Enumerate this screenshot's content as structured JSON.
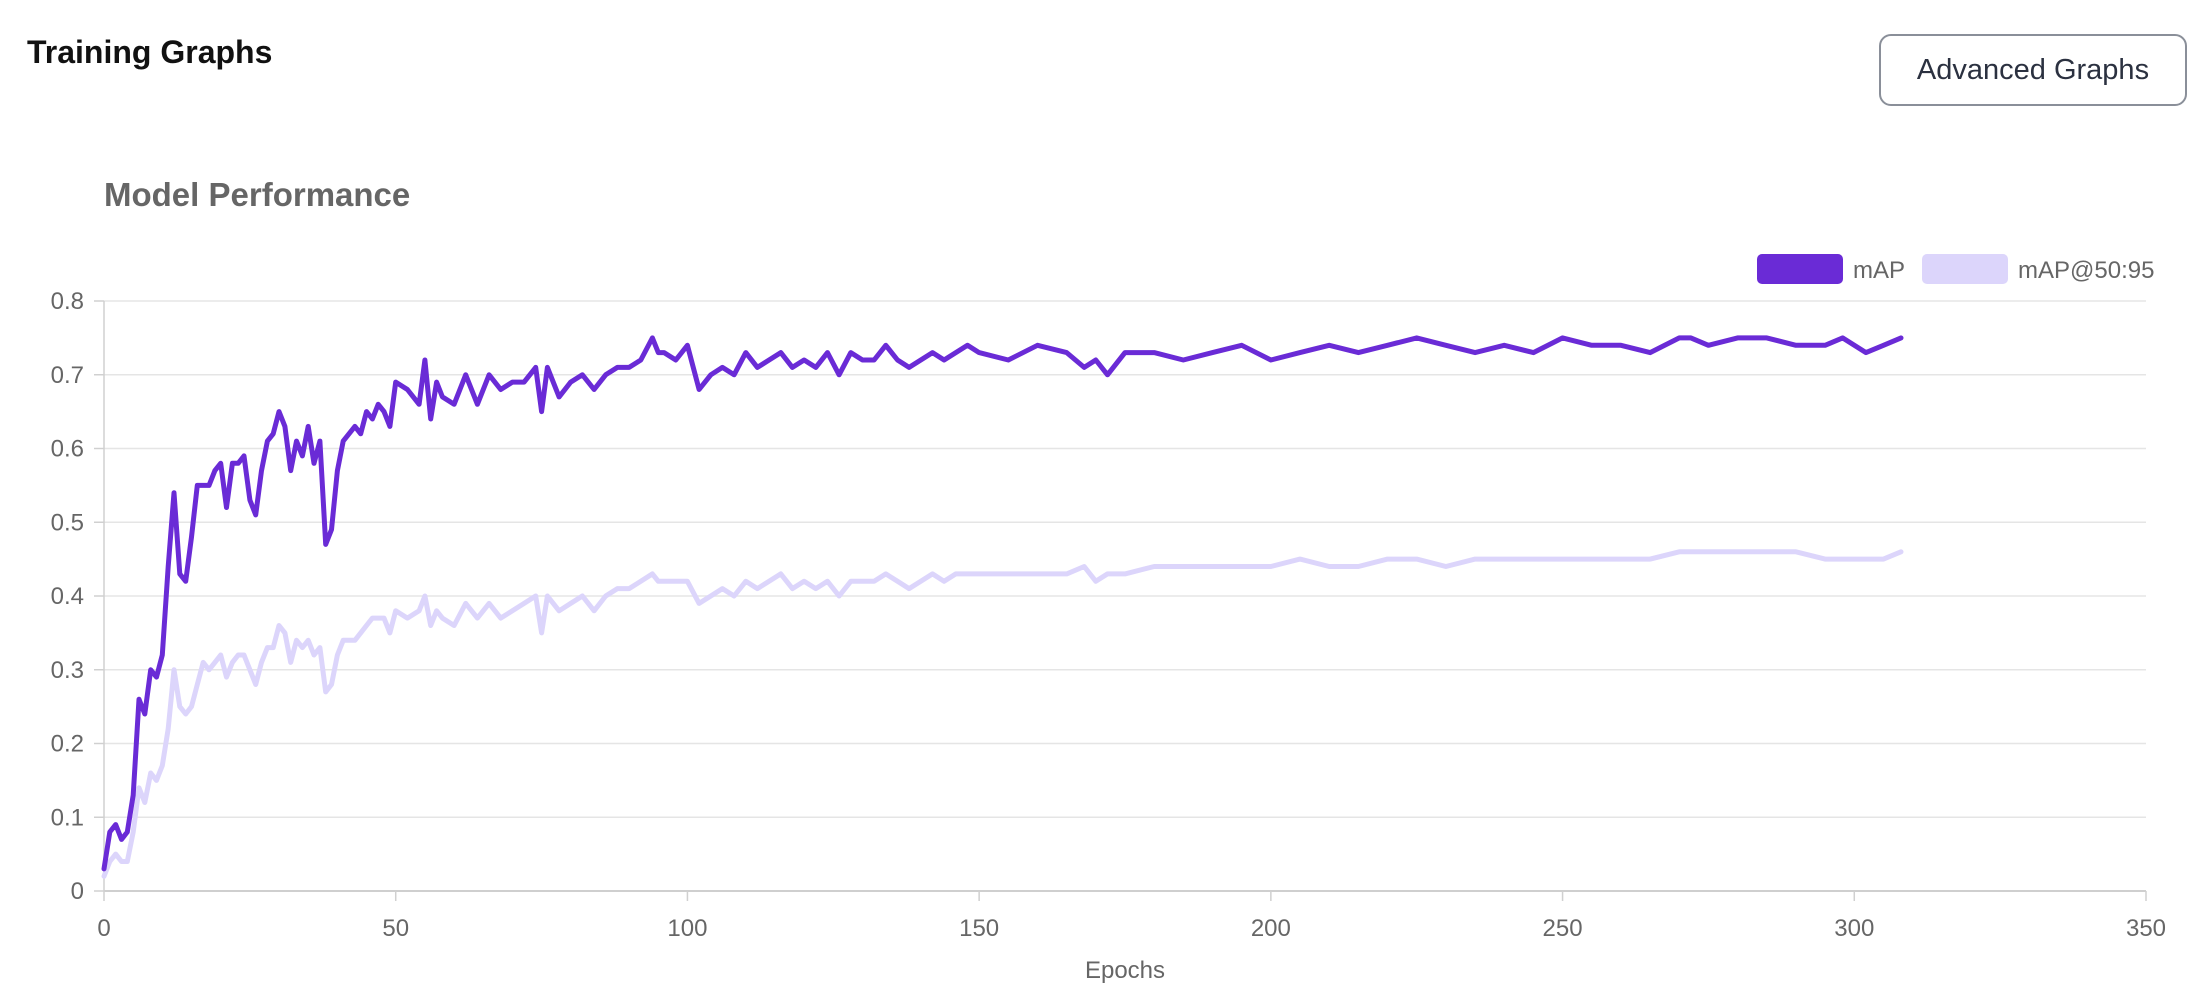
{
  "header": {
    "title": "Training Graphs",
    "advanced_button_label": "Advanced Graphs"
  },
  "chart_data": {
    "type": "line",
    "title": "Model Performance",
    "xlabel": "Epochs",
    "ylabel": "",
    "xlim": [
      0,
      350
    ],
    "ylim": [
      0,
      0.8
    ],
    "xticks": [
      0,
      50,
      100,
      150,
      200,
      250,
      300,
      350
    ],
    "yticks": [
      0,
      0.1,
      0.2,
      0.3,
      0.4,
      0.5,
      0.6,
      0.7,
      0.8
    ],
    "grid": true,
    "legend_position": "top-right",
    "series": [
      {
        "name": "mAP",
        "color": "#6a2bd6",
        "x": [
          0,
          1,
          2,
          3,
          4,
          5,
          6,
          7,
          8,
          9,
          10,
          11,
          12,
          13,
          14,
          15,
          16,
          17,
          18,
          19,
          20,
          21,
          22,
          23,
          24,
          25,
          26,
          27,
          28,
          29,
          30,
          31,
          32,
          33,
          34,
          35,
          36,
          37,
          38,
          39,
          40,
          41,
          42,
          43,
          44,
          45,
          46,
          47,
          48,
          49,
          50,
          52,
          54,
          55,
          56,
          57,
          58,
          60,
          62,
          64,
          66,
          68,
          70,
          72,
          74,
          75,
          76,
          78,
          80,
          82,
          84,
          86,
          88,
          90,
          92,
          94,
          95,
          96,
          98,
          100,
          102,
          104,
          106,
          108,
          110,
          112,
          114,
          116,
          118,
          120,
          122,
          124,
          126,
          128,
          130,
          132,
          134,
          136,
          138,
          140,
          142,
          144,
          146,
          148,
          150,
          155,
          160,
          165,
          168,
          170,
          172,
          175,
          180,
          185,
          190,
          195,
          200,
          205,
          210,
          215,
          220,
          225,
          230,
          235,
          240,
          245,
          250,
          255,
          260,
          265,
          270,
          272,
          275,
          280,
          285,
          290,
          295,
          298,
          300,
          302,
          305,
          308
        ],
        "values": [
          0.03,
          0.08,
          0.09,
          0.07,
          0.08,
          0.13,
          0.26,
          0.24,
          0.3,
          0.29,
          0.32,
          0.44,
          0.54,
          0.43,
          0.42,
          0.48,
          0.55,
          0.55,
          0.55,
          0.57,
          0.58,
          0.52,
          0.58,
          0.58,
          0.59,
          0.53,
          0.51,
          0.57,
          0.61,
          0.62,
          0.65,
          0.63,
          0.57,
          0.61,
          0.59,
          0.63,
          0.58,
          0.61,
          0.47,
          0.49,
          0.57,
          0.61,
          0.62,
          0.63,
          0.62,
          0.65,
          0.64,
          0.66,
          0.65,
          0.63,
          0.69,
          0.68,
          0.66,
          0.72,
          0.64,
          0.69,
          0.67,
          0.66,
          0.7,
          0.66,
          0.7,
          0.68,
          0.69,
          0.69,
          0.71,
          0.65,
          0.71,
          0.67,
          0.69,
          0.7,
          0.68,
          0.7,
          0.71,
          0.71,
          0.72,
          0.75,
          0.73,
          0.73,
          0.72,
          0.74,
          0.68,
          0.7,
          0.71,
          0.7,
          0.73,
          0.71,
          0.72,
          0.73,
          0.71,
          0.72,
          0.71,
          0.73,
          0.7,
          0.73,
          0.72,
          0.72,
          0.74,
          0.72,
          0.71,
          0.72,
          0.73,
          0.72,
          0.73,
          0.74,
          0.73,
          0.72,
          0.74,
          0.73,
          0.71,
          0.72,
          0.7,
          0.73,
          0.73,
          0.72,
          0.73,
          0.74,
          0.72,
          0.73,
          0.74,
          0.73,
          0.74,
          0.75,
          0.74,
          0.73,
          0.74,
          0.73,
          0.75,
          0.74,
          0.74,
          0.73,
          0.75,
          0.75,
          0.74,
          0.75,
          0.75,
          0.74,
          0.74,
          0.75,
          0.74,
          0.73,
          0.74,
          0.75
        ]
      },
      {
        "name": "mAP@50:95",
        "color": "#dcd5fb",
        "x": [
          0,
          1,
          2,
          3,
          4,
          5,
          6,
          7,
          8,
          9,
          10,
          11,
          12,
          13,
          14,
          15,
          16,
          17,
          18,
          19,
          20,
          21,
          22,
          23,
          24,
          25,
          26,
          27,
          28,
          29,
          30,
          31,
          32,
          33,
          34,
          35,
          36,
          37,
          38,
          39,
          40,
          41,
          42,
          43,
          44,
          45,
          46,
          47,
          48,
          49,
          50,
          52,
          54,
          55,
          56,
          57,
          58,
          60,
          62,
          64,
          66,
          68,
          70,
          72,
          74,
          75,
          76,
          78,
          80,
          82,
          84,
          86,
          88,
          90,
          92,
          94,
          95,
          96,
          98,
          100,
          102,
          104,
          106,
          108,
          110,
          112,
          114,
          116,
          118,
          120,
          122,
          124,
          126,
          128,
          130,
          132,
          134,
          136,
          138,
          140,
          142,
          144,
          146,
          148,
          150,
          155,
          160,
          165,
          168,
          170,
          172,
          175,
          180,
          185,
          190,
          195,
          200,
          205,
          210,
          215,
          220,
          225,
          230,
          235,
          240,
          245,
          250,
          255,
          260,
          265,
          270,
          272,
          275,
          280,
          285,
          290,
          295,
          298,
          300,
          302,
          305,
          308
        ],
        "values": [
          0.02,
          0.04,
          0.05,
          0.04,
          0.04,
          0.08,
          0.14,
          0.12,
          0.16,
          0.15,
          0.17,
          0.22,
          0.3,
          0.25,
          0.24,
          0.25,
          0.28,
          0.31,
          0.3,
          0.31,
          0.32,
          0.29,
          0.31,
          0.32,
          0.32,
          0.3,
          0.28,
          0.31,
          0.33,
          0.33,
          0.36,
          0.35,
          0.31,
          0.34,
          0.33,
          0.34,
          0.32,
          0.33,
          0.27,
          0.28,
          0.32,
          0.34,
          0.34,
          0.34,
          0.35,
          0.36,
          0.37,
          0.37,
          0.37,
          0.35,
          0.38,
          0.37,
          0.38,
          0.4,
          0.36,
          0.38,
          0.37,
          0.36,
          0.39,
          0.37,
          0.39,
          0.37,
          0.38,
          0.39,
          0.4,
          0.35,
          0.4,
          0.38,
          0.39,
          0.4,
          0.38,
          0.4,
          0.41,
          0.41,
          0.42,
          0.43,
          0.42,
          0.42,
          0.42,
          0.42,
          0.39,
          0.4,
          0.41,
          0.4,
          0.42,
          0.41,
          0.42,
          0.43,
          0.41,
          0.42,
          0.41,
          0.42,
          0.4,
          0.42,
          0.42,
          0.42,
          0.43,
          0.42,
          0.41,
          0.42,
          0.43,
          0.42,
          0.43,
          0.43,
          0.43,
          0.43,
          0.43,
          0.43,
          0.44,
          0.42,
          0.43,
          0.43,
          0.44,
          0.44,
          0.44,
          0.44,
          0.44,
          0.45,
          0.44,
          0.44,
          0.45,
          0.45,
          0.44,
          0.45,
          0.45,
          0.45,
          0.45,
          0.45,
          0.45,
          0.45,
          0.46,
          0.46,
          0.46,
          0.46,
          0.46,
          0.46,
          0.45,
          0.45,
          0.45,
          0.45,
          0.45,
          0.46
        ]
      }
    ]
  }
}
